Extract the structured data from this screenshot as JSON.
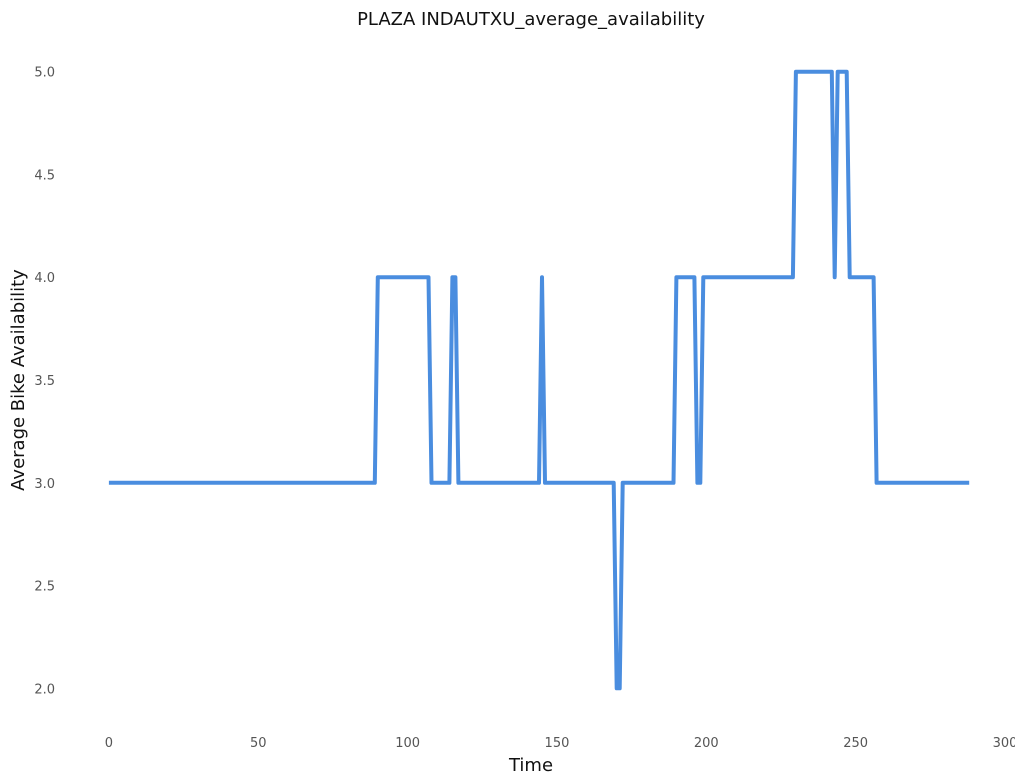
{
  "chart_data": {
    "type": "line",
    "title": "PLAZA INDAUTXU_average_availability",
    "xlabel": "Time",
    "ylabel": "Average Bike Availability",
    "xlim": [
      -5,
      300
    ],
    "ylim": [
      1.87,
      5.13
    ],
    "xticks": [
      0,
      50,
      100,
      150,
      200,
      250,
      300
    ],
    "yticks": [
      2.0,
      2.5,
      3.0,
      3.5,
      4.0,
      4.5,
      5.0
    ],
    "xtick_labels": [
      "0",
      "50",
      "100",
      "150",
      "200",
      "250",
      "300"
    ],
    "ytick_labels": [
      "2.0",
      "2.5",
      "3.0",
      "3.5",
      "4.0",
      "4.5",
      "5.0"
    ],
    "grid": false,
    "series": [
      {
        "color": "#4a8ddf",
        "x": [
          0,
          89,
          90,
          107,
          108,
          114,
          115,
          116,
          117,
          144,
          145,
          146,
          169,
          170,
          171,
          172,
          189,
          190,
          196,
          197,
          198,
          199,
          229,
          230,
          242,
          243,
          244,
          247,
          248,
          256,
          257,
          288
        ],
        "y": [
          3,
          3,
          4,
          4,
          3,
          3,
          4,
          4,
          3,
          3,
          4,
          3,
          3,
          2,
          2,
          3,
          3,
          4,
          4,
          3,
          3,
          4,
          4,
          5,
          5,
          4,
          5,
          5,
          4,
          4,
          3,
          3
        ]
      }
    ]
  }
}
